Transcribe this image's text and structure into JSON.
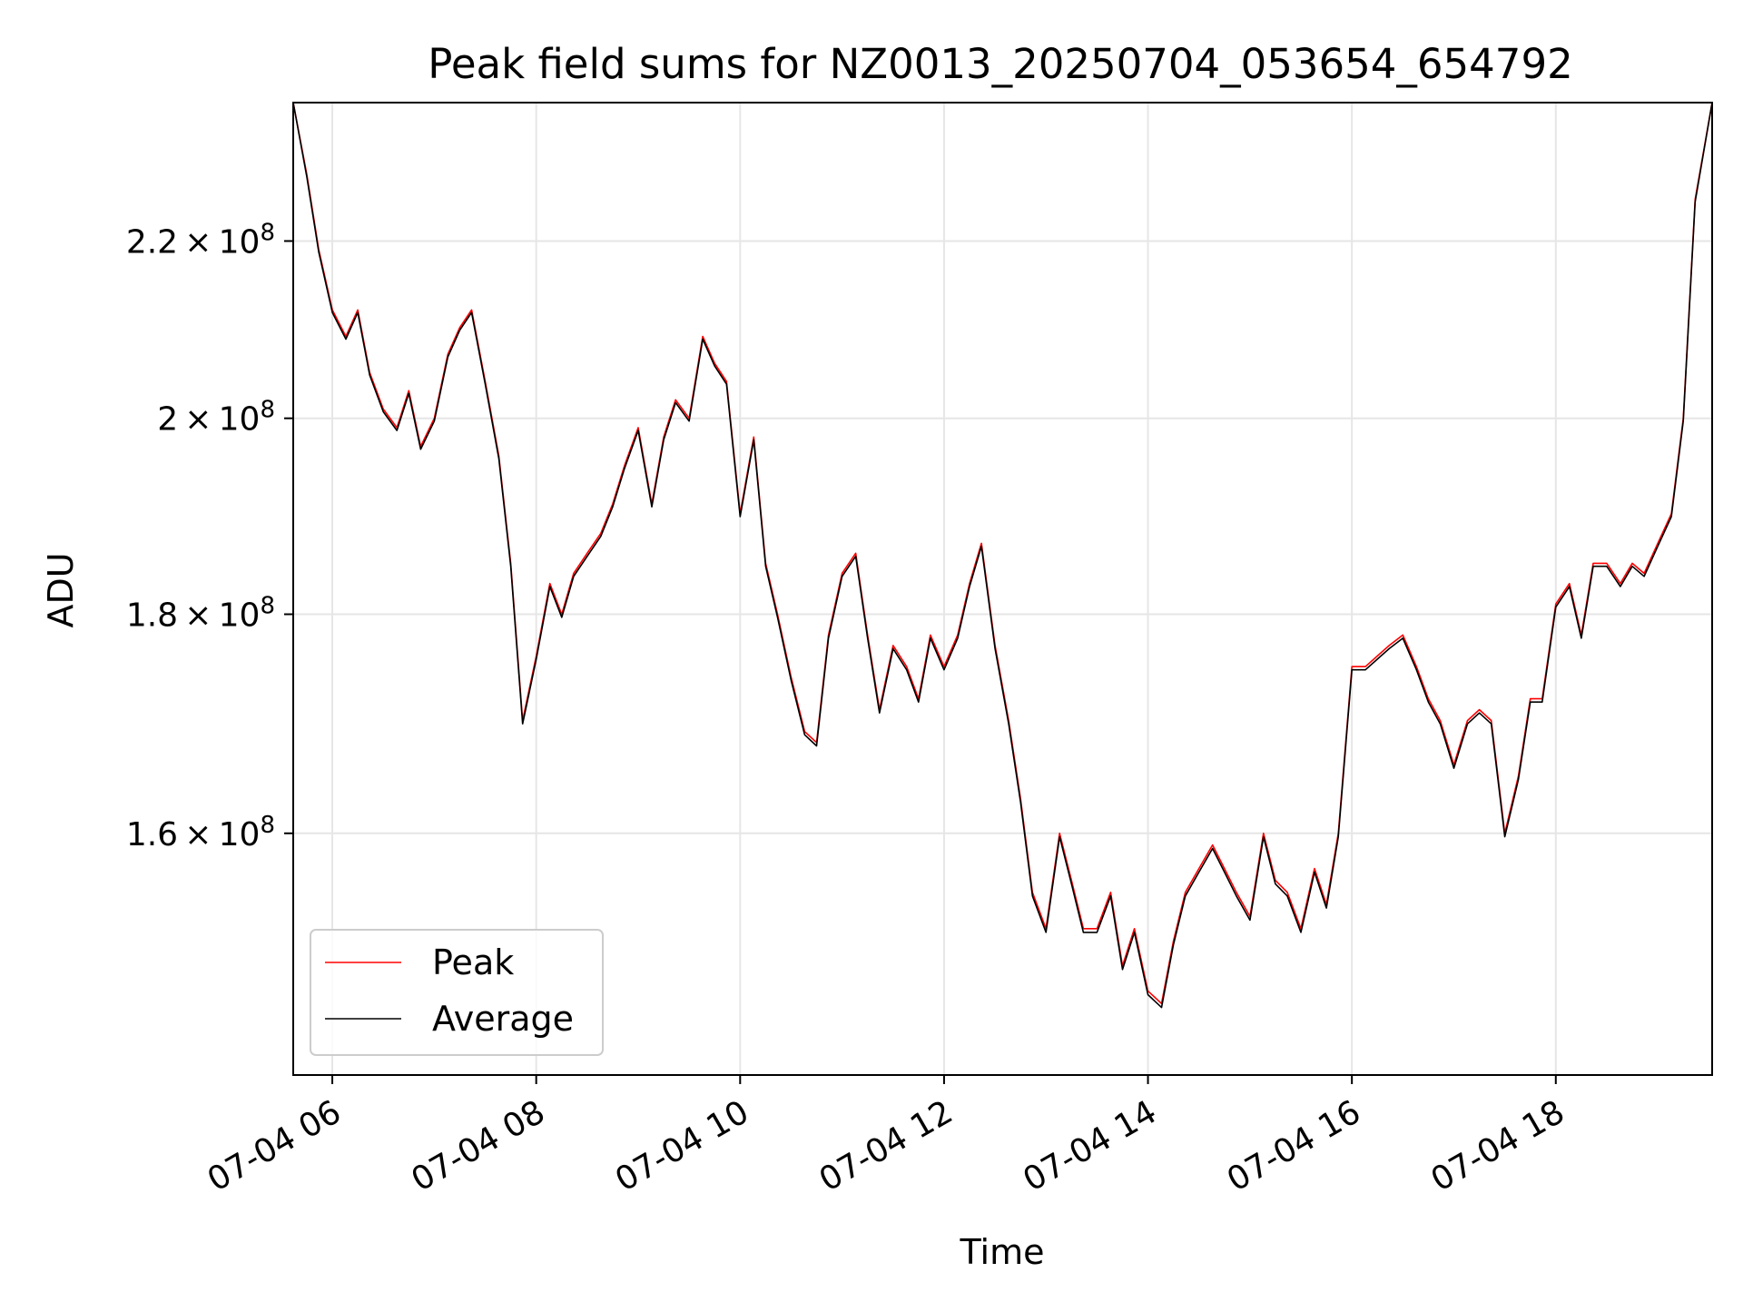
{
  "chart_data": {
    "type": "line",
    "title": "Peak field sums for NZ0013_20250704_053654_654792",
    "xlabel": "Time",
    "ylabel": "ADU",
    "y_scale": "log",
    "ylim": [
      140500000,
      237000000
    ],
    "xlim": [
      "07-04 05:37",
      "07-04 19:32"
    ],
    "grid": true,
    "legend_position": "lower-left",
    "x_ticks": [
      {
        "value": "07-04 06:00",
        "label": "07-04 06"
      },
      {
        "value": "07-04 08:00",
        "label": "07-04 08"
      },
      {
        "value": "07-04 10:00",
        "label": "07-04 10"
      },
      {
        "value": "07-04 12:00",
        "label": "07-04 12"
      },
      {
        "value": "07-04 14:00",
        "label": "07-04 14"
      },
      {
        "value": "07-04 16:00",
        "label": "07-04 16"
      },
      {
        "value": "07-04 18:00",
        "label": "07-04 18"
      }
    ],
    "y_ticks": [
      {
        "value": 160000000,
        "mantissa": "1.6",
        "exp": "8"
      },
      {
        "value": 180000000,
        "mantissa": "1.8",
        "exp": "8"
      },
      {
        "value": 200000000,
        "mantissa": "2",
        "exp": "8"
      },
      {
        "value": 220000000,
        "mantissa": "2.2",
        "exp": "8"
      }
    ],
    "series": [
      {
        "name": "Peak",
        "color": "#ff0000",
        "x": [
          "07-04 05:37",
          "07-04 05:45",
          "07-04 05:52",
          "07-04 06:00",
          "07-04 06:08",
          "07-04 06:15",
          "07-04 06:22",
          "07-04 06:30",
          "07-04 06:38",
          "07-04 06:45",
          "07-04 06:52",
          "07-04 07:00",
          "07-04 07:08",
          "07-04 07:15",
          "07-04 07:22",
          "07-04 07:30",
          "07-04 07:38",
          "07-04 07:45",
          "07-04 07:52",
          "07-04 08:00",
          "07-04 08:08",
          "07-04 08:15",
          "07-04 08:22",
          "07-04 08:30",
          "07-04 08:38",
          "07-04 08:45",
          "07-04 08:52",
          "07-04 09:00",
          "07-04 09:08",
          "07-04 09:15",
          "07-04 09:22",
          "07-04 09:30",
          "07-04 09:38",
          "07-04 09:45",
          "07-04 09:52",
          "07-04 10:00",
          "07-04 10:08",
          "07-04 10:15",
          "07-04 10:22",
          "07-04 10:30",
          "07-04 10:38",
          "07-04 10:45",
          "07-04 10:52",
          "07-04 11:00",
          "07-04 11:08",
          "07-04 11:15",
          "07-04 11:22",
          "07-04 11:30",
          "07-04 11:38",
          "07-04 11:45",
          "07-04 11:52",
          "07-04 12:00",
          "07-04 12:08",
          "07-04 12:15",
          "07-04 12:22",
          "07-04 12:30",
          "07-04 12:38",
          "07-04 12:45",
          "07-04 12:52",
          "07-04 13:00",
          "07-04 13:08",
          "07-04 13:15",
          "07-04 13:22",
          "07-04 13:30",
          "07-04 13:38",
          "07-04 13:45",
          "07-04 13:52",
          "07-04 14:00",
          "07-04 14:08",
          "07-04 14:15",
          "07-04 14:22",
          "07-04 14:30",
          "07-04 14:38",
          "07-04 14:45",
          "07-04 14:52",
          "07-04 15:00",
          "07-04 15:08",
          "07-04 15:15",
          "07-04 15:22",
          "07-04 15:30",
          "07-04 15:38",
          "07-04 15:45",
          "07-04 15:52",
          "07-04 16:00",
          "07-04 16:08",
          "07-04 16:15",
          "07-04 16:22",
          "07-04 16:30",
          "07-04 16:38",
          "07-04 16:45",
          "07-04 16:52",
          "07-04 17:00",
          "07-04 17:08",
          "07-04 17:15",
          "07-04 17:22",
          "07-04 17:30",
          "07-04 17:38",
          "07-04 17:45",
          "07-04 17:52",
          "07-04 18:00",
          "07-04 18:08",
          "07-04 18:15",
          "07-04 18:22",
          "07-04 18:30",
          "07-04 18:38",
          "07-04 18:45",
          "07-04 18:52",
          "07-04 19:00",
          "07-04 19:08",
          "07-04 19:15",
          "07-04 19:22",
          "07-04 19:32"
        ],
        "values": [
          237000000,
          228000000,
          219000000,
          212000000,
          209000000,
          212000000,
          205000000,
          201000000,
          199000000,
          203000000,
          197000000,
          200000000,
          207000000,
          210000000,
          212000000,
          204000000,
          196000000,
          185000000,
          170000000,
          176000000,
          183000000,
          180000000,
          184000000,
          186000000,
          188000000,
          191000000,
          195000000,
          199000000,
          191000000,
          198000000,
          202000000,
          200000000,
          209000000,
          206000000,
          204000000,
          190000000,
          198000000,
          185000000,
          180000000,
          174000000,
          169000000,
          168000000,
          178000000,
          184000000,
          186000000,
          178000000,
          171000000,
          177000000,
          175000000,
          172000000,
          178000000,
          175000000,
          178000000,
          183000000,
          187000000,
          177000000,
          170000000,
          163000000,
          155000000,
          152000000,
          160000000,
          156000000,
          152000000,
          152000000,
          155000000,
          149000000,
          152000000,
          147000000,
          146000000,
          151000000,
          155000000,
          157000000,
          159000000,
          157000000,
          155000000,
          153000000,
          160000000,
          156000000,
          155000000,
          152000000,
          157000000,
          154000000,
          160000000,
          175000000,
          175000000,
          176000000,
          177000000,
          178000000,
          175000000,
          172000000,
          170000000,
          166000000,
          170000000,
          171000000,
          170000000,
          160000000,
          165000000,
          172000000,
          172000000,
          181000000,
          183000000,
          178000000,
          185000000,
          185000000,
          183000000,
          185000000,
          184000000,
          187000000,
          190000000,
          200000000,
          225000000,
          237000000
        ]
      },
      {
        "name": "Average",
        "color": "#000000",
        "x": [
          "07-04 05:37",
          "07-04 05:45",
          "07-04 05:52",
          "07-04 06:00",
          "07-04 06:08",
          "07-04 06:15",
          "07-04 06:22",
          "07-04 06:30",
          "07-04 06:38",
          "07-04 06:45",
          "07-04 06:52",
          "07-04 07:00",
          "07-04 07:08",
          "07-04 07:15",
          "07-04 07:22",
          "07-04 07:30",
          "07-04 07:38",
          "07-04 07:45",
          "07-04 07:52",
          "07-04 08:00",
          "07-04 08:08",
          "07-04 08:15",
          "07-04 08:22",
          "07-04 08:30",
          "07-04 08:38",
          "07-04 08:45",
          "07-04 08:52",
          "07-04 09:00",
          "07-04 09:08",
          "07-04 09:15",
          "07-04 09:22",
          "07-04 09:30",
          "07-04 09:38",
          "07-04 09:45",
          "07-04 09:52",
          "07-04 10:00",
          "07-04 10:08",
          "07-04 10:15",
          "07-04 10:22",
          "07-04 10:30",
          "07-04 10:38",
          "07-04 10:45",
          "07-04 10:52",
          "07-04 11:00",
          "07-04 11:08",
          "07-04 11:15",
          "07-04 11:22",
          "07-04 11:30",
          "07-04 11:38",
          "07-04 11:45",
          "07-04 11:52",
          "07-04 12:00",
          "07-04 12:08",
          "07-04 12:15",
          "07-04 12:22",
          "07-04 12:30",
          "07-04 12:38",
          "07-04 12:45",
          "07-04 12:52",
          "07-04 13:00",
          "07-04 13:08",
          "07-04 13:15",
          "07-04 13:22",
          "07-04 13:30",
          "07-04 13:38",
          "07-04 13:45",
          "07-04 13:52",
          "07-04 14:00",
          "07-04 14:08",
          "07-04 14:15",
          "07-04 14:22",
          "07-04 14:30",
          "07-04 14:38",
          "07-04 14:45",
          "07-04 14:52",
          "07-04 15:00",
          "07-04 15:08",
          "07-04 15:15",
          "07-04 15:22",
          "07-04 15:30",
          "07-04 15:38",
          "07-04 15:45",
          "07-04 15:52",
          "07-04 16:00",
          "07-04 16:08",
          "07-04 16:15",
          "07-04 16:22",
          "07-04 16:30",
          "07-04 16:38",
          "07-04 16:45",
          "07-04 16:52",
          "07-04 17:00",
          "07-04 17:08",
          "07-04 17:15",
          "07-04 17:22",
          "07-04 17:30",
          "07-04 17:38",
          "07-04 17:45",
          "07-04 17:52",
          "07-04 18:00",
          "07-04 18:08",
          "07-04 18:15",
          "07-04 18:22",
          "07-04 18:30",
          "07-04 18:38",
          "07-04 18:45",
          "07-04 18:52",
          "07-04 19:00",
          "07-04 19:08",
          "07-04 19:15",
          "07-04 19:22",
          "07-04 19:32"
        ],
        "values": [
          237000000,
          227700000,
          218700000,
          211700000,
          208700000,
          211700000,
          204700000,
          200700000,
          198700000,
          202700000,
          196700000,
          199700000,
          206700000,
          209700000,
          211700000,
          203700000,
          195700000,
          184700000,
          169700000,
          175700000,
          182700000,
          179700000,
          183700000,
          185700000,
          187700000,
          190700000,
          194700000,
          198700000,
          190700000,
          197700000,
          201700000,
          199700000,
          208700000,
          205700000,
          203700000,
          189700000,
          197700000,
          184700000,
          179700000,
          173700000,
          168700000,
          167700000,
          177700000,
          183700000,
          185700000,
          177700000,
          170700000,
          176700000,
          174700000,
          171700000,
          177700000,
          174700000,
          177700000,
          182700000,
          186700000,
          176700000,
          169700000,
          162700000,
          154700000,
          151700000,
          159700000,
          155700000,
          151700000,
          151700000,
          154700000,
          148700000,
          151700000,
          146700000,
          145700000,
          150700000,
          154700000,
          156700000,
          158700000,
          156700000,
          154700000,
          152700000,
          159700000,
          155700000,
          154700000,
          151700000,
          156700000,
          153700000,
          159700000,
          174700000,
          174700000,
          175700000,
          176700000,
          177700000,
          174700000,
          171700000,
          169700000,
          165700000,
          169700000,
          170700000,
          169700000,
          159700000,
          164700000,
          171700000,
          171700000,
          180700000,
          182700000,
          177700000,
          184700000,
          184700000,
          182700000,
          184700000,
          183700000,
          186700000,
          189700000,
          199700000,
          224700000,
          237000000
        ]
      }
    ]
  }
}
